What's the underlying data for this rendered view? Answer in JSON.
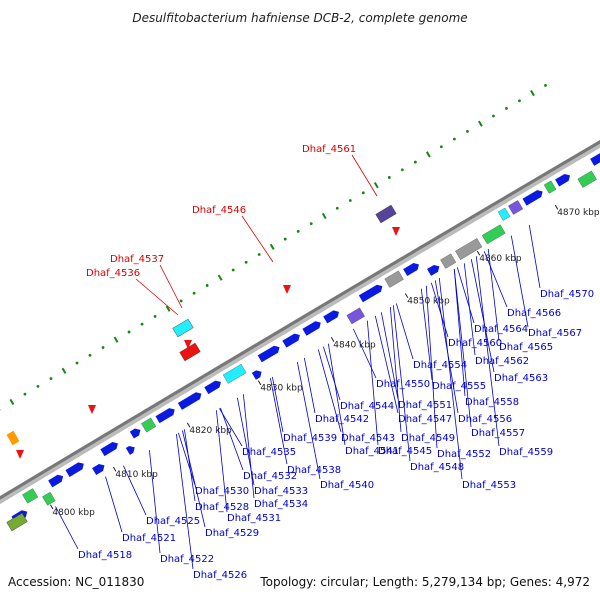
{
  "title": "Desulfitobacterium hafniense DCB-2, complete genome",
  "footer": {
    "accession": "Accession: NC_011830",
    "summary": "Topology: circular; Length: 5,279,134 bp; Genes: 4,972"
  },
  "colors": {
    "backbone": "#8a8a8a",
    "label_blue": "#0000cc",
    "label_red": "#dd0000",
    "gene_blue": "#0a1adf",
    "gene_cyan": "#22eeff",
    "gene_green": "#33cc55",
    "gene_purple": "#7755dd",
    "gene_red": "#ee1111",
    "gene_orange": "#ff9900",
    "dot_green": "#118811"
  },
  "scale_ticks": [
    "4800 kbp",
    "4810 kbp",
    "4820 kbp",
    "4830 kbp",
    "4840 kbp",
    "4850 kbp",
    "4860 kbp",
    "4870 kbp"
  ],
  "red_labels": [
    "Dhaf_4536",
    "Dhaf_4537",
    "Dhaf_4546",
    "Dhaf_4561"
  ],
  "blue_labels": [
    "Dhaf_4518",
    "Dhaf_4521",
    "Dhaf_4522",
    "Dhaf_4525",
    "Dhaf_4526",
    "Dhaf_4528",
    "Dhaf_4529",
    "Dhaf_4530",
    "Dhaf_4531",
    "Dhaf_4532",
    "Dhaf_4533",
    "Dhaf_4534",
    "Dhaf_4535",
    "Dhaf_4538",
    "Dhaf_4539",
    "Dhaf_4540",
    "Dhaf_4541",
    "Dhaf_4542",
    "Dhaf_4543",
    "Dhaf_4544",
    "Dhaf_4545",
    "Dhaf_4547",
    "Dhaf_4548",
    "Dhaf_4549",
    "Dhaf_4550",
    "Dhaf_4551",
    "Dhaf_4552",
    "Dhaf_4553",
    "Dhaf_4554",
    "Dhaf_4555",
    "Dhaf_4556",
    "Dhaf_4557",
    "Dhaf_4558",
    "Dhaf_4559",
    "Dhaf_4560",
    "Dhaf_4562",
    "Dhaf_4563",
    "Dhaf_4564",
    "Dhaf_4565",
    "Dhaf_4566",
    "Dhaf_4567",
    "Dhaf_4570"
  ]
}
